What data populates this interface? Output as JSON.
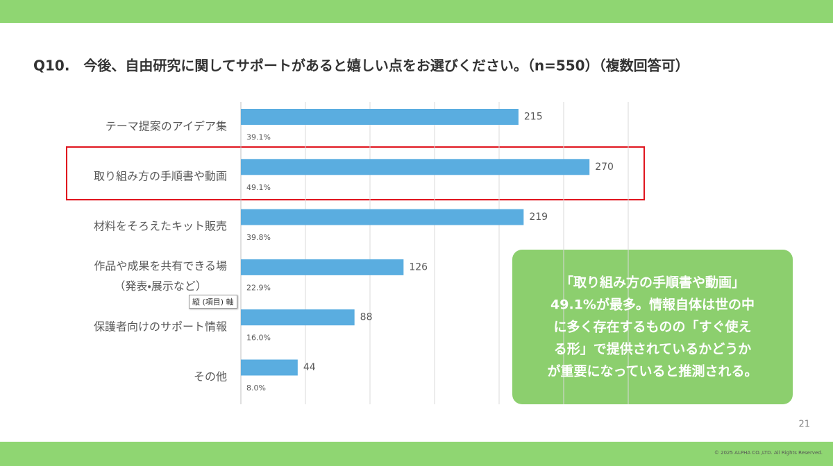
{
  "chart_data": {
    "type": "hbar",
    "title": "Q10.　今後、自由研究に関してサポートがあると嬉しい点をお選びください。（n=550）（複数回答可）",
    "categories": [
      "テーマ提案のアイデア集",
      "取り組み方の手順書や動画",
      "材料をそろえたキット販売",
      "作品や成果を共有できる場\n（発表・展示など）",
      "保護者向けのサポート情報",
      "その他"
    ],
    "values": [
      215,
      270,
      219,
      126,
      88,
      44
    ],
    "color": "#5aade0",
    "shares": {
      "values": [
        39.1,
        49.1,
        39.8,
        22.9,
        16.0,
        8.0
      ],
      "value_labels": [
        "39.1%",
        "49.1%",
        "39.8%",
        "22.9%",
        "16.0%",
        "8.0%"
      ]
    },
    "xlim": [
      0,
      300
    ],
    "xticks": [
      0,
      50,
      100,
      150,
      200,
      250,
      300
    ],
    "grid": true,
    "highlight_index": 1,
    "tooltip": "縦 (項目) 軸"
  },
  "callout": {
    "lines": [
      "「取り組み方の手順書や動画」",
      "49.1%が最多。情報自体は世の中",
      "に多く存在するものの「すぐ使え",
      "る形」で提供されているかどうか",
      "が重要になっていると推測される。"
    ]
  },
  "footer": {
    "page": "21",
    "copyright": "© 2025 ALPHA CO.,LTD. All Rights Reserved."
  }
}
